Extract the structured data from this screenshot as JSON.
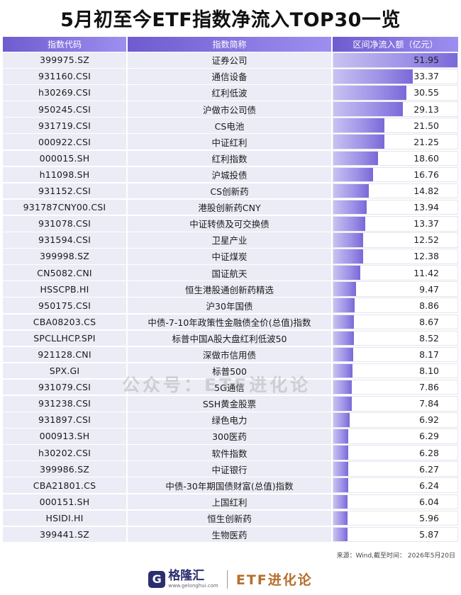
{
  "title": "5月初至今ETF指数净流入TOP30一览",
  "watermark": "公众号：ETF进化论",
  "source": "来源：Wind,截至时间：  2026年5月20日",
  "footer": {
    "logo_glyph": "G",
    "brand": "格隆汇",
    "brand_url": "www.gelonghui.com",
    "brand2": "ETF进化论"
  },
  "colors": {
    "header": "#6f5bcf",
    "bar": "#8a7ce0",
    "row_bg": "#ececf6",
    "brand2": "#b86d2a"
  },
  "chart_data": {
    "type": "table",
    "title": "5月初至今ETF指数净流入TOP30一览",
    "columns": [
      "指数代码",
      "指数简称",
      "区间净流入额（亿元）"
    ],
    "rows": [
      {
        "code": "399975.SZ",
        "name": "证券公司",
        "value": 51.95
      },
      {
        "code": "931160.CSI",
        "name": "通信设备",
        "value": 33.37
      },
      {
        "code": "h30269.CSI",
        "name": "红利低波",
        "value": 30.55
      },
      {
        "code": "950245.CSI",
        "name": "沪做市公司债",
        "value": 29.13
      },
      {
        "code": "931719.CSI",
        "name": "CS电池",
        "value": 21.5
      },
      {
        "code": "000922.CSI",
        "name": "中证红利",
        "value": 21.25
      },
      {
        "code": "000015.SH",
        "name": "红利指数",
        "value": 18.6
      },
      {
        "code": "h11098.SH",
        "name": "沪城投债",
        "value": 16.76
      },
      {
        "code": "931152.CSI",
        "name": "CS创新药",
        "value": 14.82
      },
      {
        "code": "931787CNY00.CSI",
        "name": "港股创新药CNY",
        "value": 13.94
      },
      {
        "code": "931078.CSI",
        "name": "中证转债及可交换债",
        "value": 13.37
      },
      {
        "code": "931594.CSI",
        "name": "卫星产业",
        "value": 12.52
      },
      {
        "code": "399998.SZ",
        "name": "中证煤炭",
        "value": 12.38
      },
      {
        "code": "CN5082.CNI",
        "name": "国证航天",
        "value": 11.42
      },
      {
        "code": "HSSCPB.HI",
        "name": "恒生港股通创新药精选",
        "value": 9.47
      },
      {
        "code": "950175.CSI",
        "name": "沪30年国债",
        "value": 8.86
      },
      {
        "code": "CBA08203.CS",
        "name": "中债-7-10年政策性金融债全价(总值)指数",
        "value": 8.67
      },
      {
        "code": "SPCLLHCP.SPI",
        "name": "标普中国A股大盘红利低波50",
        "value": 8.52
      },
      {
        "code": "921128.CNI",
        "name": "深做市信用债",
        "value": 8.17
      },
      {
        "code": "SPX.GI",
        "name": "标普500",
        "value": 8.1
      },
      {
        "code": "931079.CSI",
        "name": "5G通信",
        "value": 7.86
      },
      {
        "code": "931238.CSI",
        "name": "SSH黄金股票",
        "value": 7.84
      },
      {
        "code": "931897.CSI",
        "name": "绿色电力",
        "value": 6.92
      },
      {
        "code": "000913.SH",
        "name": "300医药",
        "value": 6.29
      },
      {
        "code": "h30202.CSI",
        "name": "软件指数",
        "value": 6.28
      },
      {
        "code": "399986.SZ",
        "name": "中证银行",
        "value": 6.27
      },
      {
        "code": "CBA21801.CS",
        "name": "中债-30年期国债财富(总值)指数",
        "value": 6.24
      },
      {
        "code": "000151.SH",
        "name": "上国红利",
        "value": 6.04
      },
      {
        "code": "HSIDI.HI",
        "name": "恒生创新药",
        "value": 5.96
      },
      {
        "code": "399441.SZ",
        "name": "生物医药",
        "value": 5.87
      }
    ]
  }
}
